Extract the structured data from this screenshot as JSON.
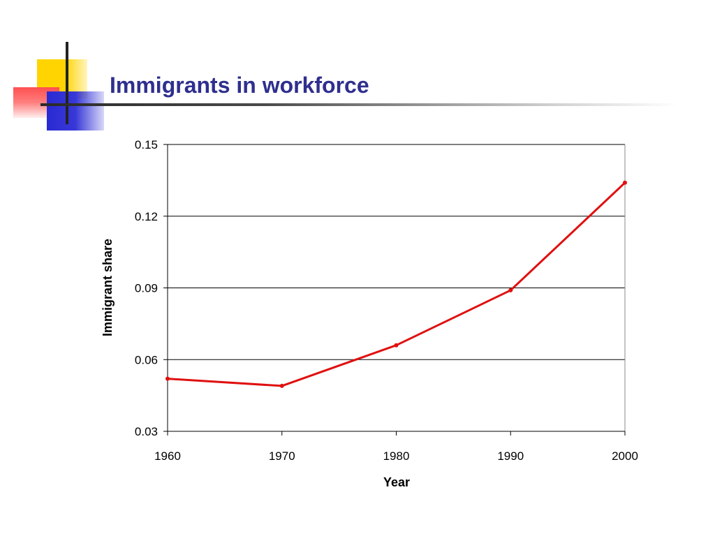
{
  "slide": {
    "title": "Immigrants in workforce"
  },
  "colors": {
    "title": "#2f2f8f",
    "series_line": "#e01010",
    "grid": "#000000"
  },
  "chart_data": {
    "type": "line",
    "xlabel": "Year",
    "ylabel": "Immigrant share",
    "x": [
      1960,
      1970,
      1980,
      1990,
      2000
    ],
    "xlim": [
      1960,
      2000
    ],
    "ylim": [
      0.03,
      0.15
    ],
    "yticks": [
      "0.03",
      "0.06",
      "0.09",
      "0.12",
      "0.15"
    ],
    "xticks": [
      "1960",
      "1970",
      "1980",
      "1990",
      "2000"
    ],
    "grid": "horizontal",
    "legend": "none",
    "series": [
      {
        "values": [
          0.052,
          0.049,
          0.066,
          0.089,
          0.134
        ]
      }
    ]
  }
}
